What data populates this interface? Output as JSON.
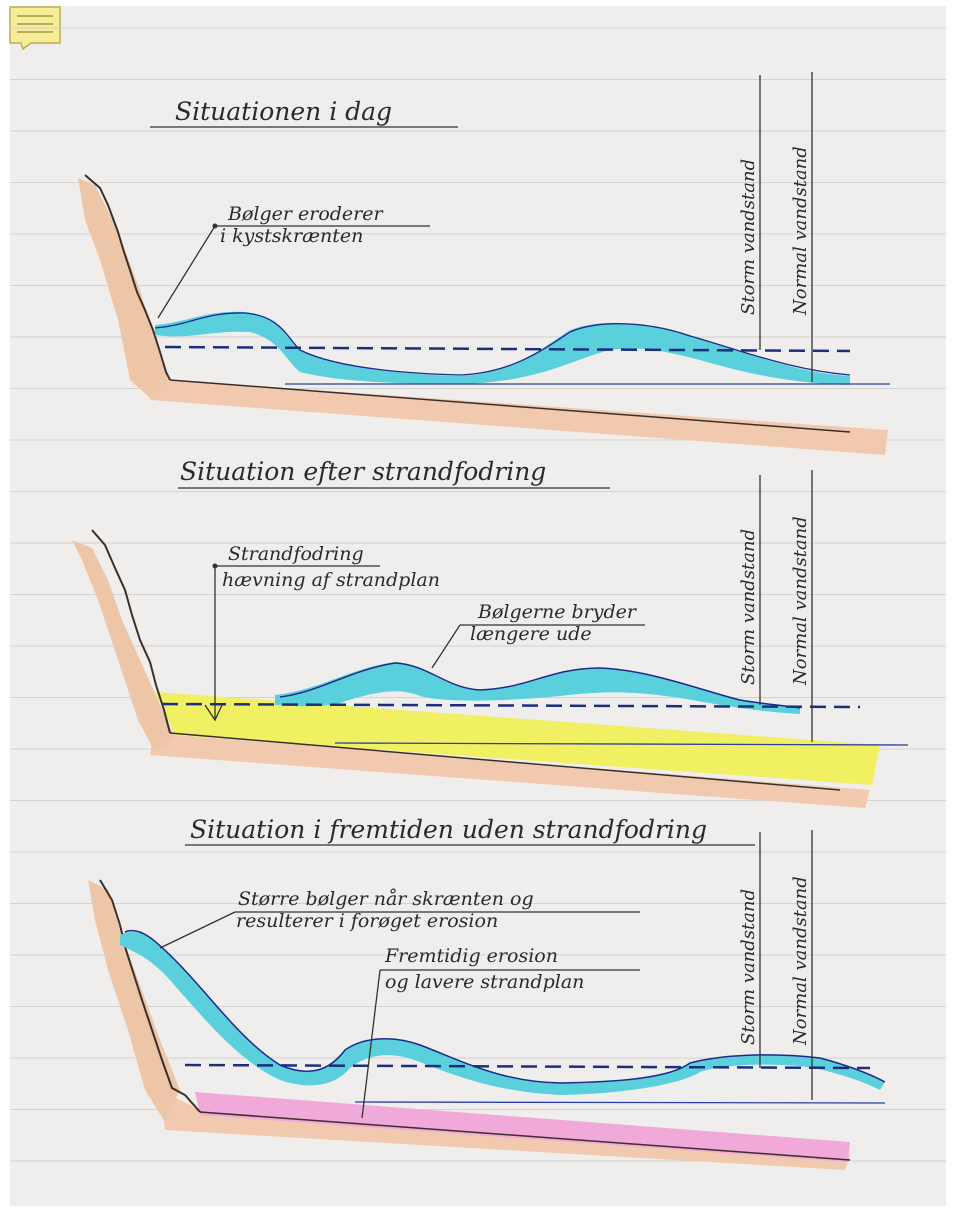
{
  "colors": {
    "paper": "#efeeec",
    "ruling": "#d3d3d1",
    "cliff_shade": "#edc6a8",
    "sea_bed_shade": "#f0c9ae",
    "water": "#5ad0dc",
    "water_line": "#1d2a8a",
    "dashed_line": "#1b2f7c",
    "sand_nourishment": "#f1ef62",
    "future_erosion": "#f1a9d9",
    "ink": "#2a2a2a",
    "note_icon": "#f6ec9a"
  },
  "toolbar": {
    "note_icon": "note-icon"
  },
  "panels": [
    {
      "title": "Situationen i dag",
      "callout": "Bølger eroderer\ni kystskrænten",
      "storm_label": "Storm vandstand",
      "normal_label": "Normal vandstand"
    },
    {
      "title": "Situation efter strandfodring",
      "callout": "Strandfodring\nhævning af strandplan",
      "callout2": "Bølgerne bryder\nlængere ude",
      "storm_label": "Storm vandstand",
      "normal_label": "Normal vandstand"
    },
    {
      "title": "Situation i fremtiden uden strandfodring",
      "callout": "Større bølger når skrænten og\nresulterer i forøget erosion",
      "callout2": "Fremtidig erosion\nog lavere strandplan",
      "storm_label": "Storm vandstand",
      "normal_label": "Normal vandstand"
    }
  ]
}
